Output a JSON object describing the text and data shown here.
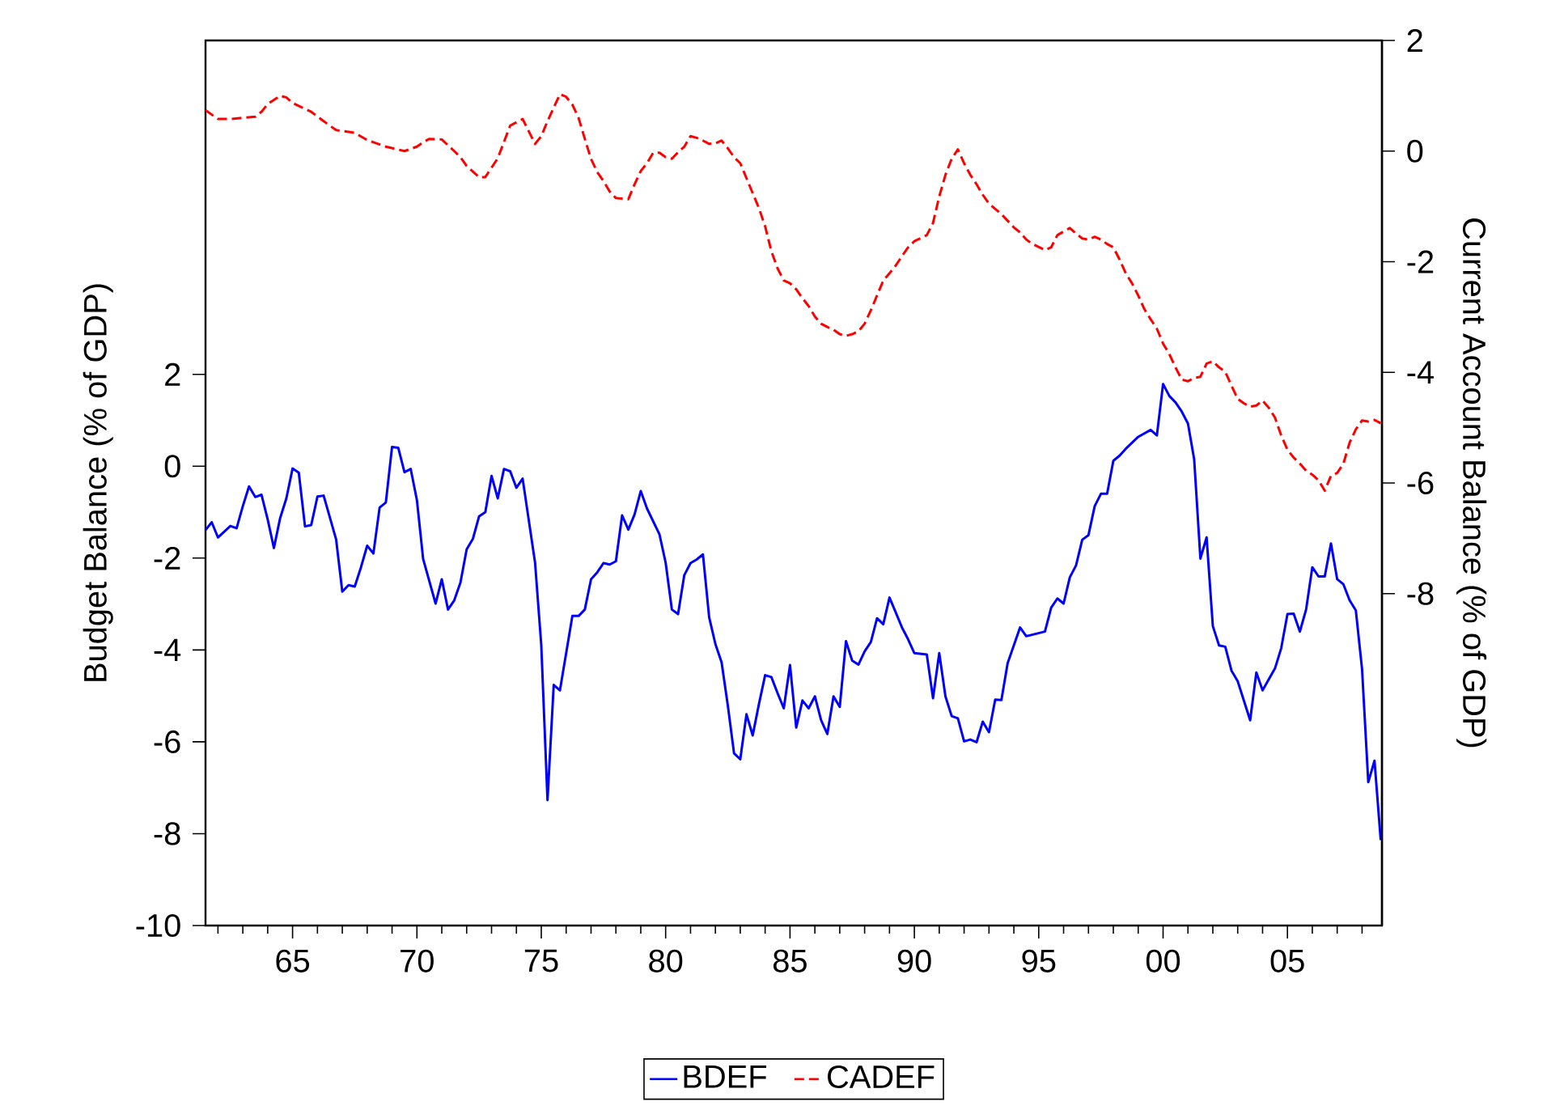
{
  "chart_data": {
    "type": "line",
    "ylabel": "Budget Balance (% of GDP)",
    "y2label": "Current Account Balance (% of GDP)",
    "xlim": [
      1961.5,
      2008.8
    ],
    "ylim": [
      -10,
      9.27
    ],
    "y2lim": [
      -14,
      2
    ],
    "xticks": [
      {
        "value": 1962,
        "label": null
      },
      {
        "value": 1963,
        "label": null
      },
      {
        "value": 1964,
        "label": null
      },
      {
        "value": 1965,
        "label": "65"
      },
      {
        "value": 1966,
        "label": null
      },
      {
        "value": 1967,
        "label": null
      },
      {
        "value": 1968,
        "label": null
      },
      {
        "value": 1969,
        "label": null
      },
      {
        "value": 1970,
        "label": "70"
      },
      {
        "value": 1971,
        "label": null
      },
      {
        "value": 1972,
        "label": null
      },
      {
        "value": 1973,
        "label": null
      },
      {
        "value": 1974,
        "label": null
      },
      {
        "value": 1975,
        "label": "75"
      },
      {
        "value": 1976,
        "label": null
      },
      {
        "value": 1977,
        "label": null
      },
      {
        "value": 1978,
        "label": null
      },
      {
        "value": 1979,
        "label": null
      },
      {
        "value": 1980,
        "label": "80"
      },
      {
        "value": 1981,
        "label": null
      },
      {
        "value": 1982,
        "label": null
      },
      {
        "value": 1983,
        "label": null
      },
      {
        "value": 1984,
        "label": null
      },
      {
        "value": 1985,
        "label": "85"
      },
      {
        "value": 1986,
        "label": null
      },
      {
        "value": 1987,
        "label": null
      },
      {
        "value": 1988,
        "label": null
      },
      {
        "value": 1989,
        "label": null
      },
      {
        "value": 1990,
        "label": "90"
      },
      {
        "value": 1991,
        "label": null
      },
      {
        "value": 1992,
        "label": null
      },
      {
        "value": 1993,
        "label": null
      },
      {
        "value": 1994,
        "label": null
      },
      {
        "value": 1995,
        "label": "95"
      },
      {
        "value": 1996,
        "label": null
      },
      {
        "value": 1997,
        "label": null
      },
      {
        "value": 1998,
        "label": null
      },
      {
        "value": 1999,
        "label": null
      },
      {
        "value": 2000,
        "label": "00"
      },
      {
        "value": 2001,
        "label": null
      },
      {
        "value": 2002,
        "label": null
      },
      {
        "value": 2003,
        "label": null
      },
      {
        "value": 2004,
        "label": null
      },
      {
        "value": 2005,
        "label": "05"
      },
      {
        "value": 2006,
        "label": null
      },
      {
        "value": 2007,
        "label": null
      },
      {
        "value": 2008,
        "label": null
      }
    ],
    "yticks": [
      -10,
      -8,
      -6,
      -4,
      -2,
      0,
      2
    ],
    "y2ticks": [
      -8,
      -6,
      -4,
      -2,
      0,
      2
    ],
    "legend": "bottom",
    "grid": false,
    "marker": "none",
    "series": [
      {
        "name": "BDEF",
        "color": "#0000ff",
        "line_style": "solid",
        "axis": "y",
        "x": [
          1961.5,
          1961.75,
          1962,
          1962.5,
          1962.75,
          1963,
          1963.25,
          1963.5,
          1963.75,
          1964,
          1964.25,
          1964.5,
          1964.75,
          1965,
          1965.25,
          1965.5,
          1965.75,
          1966,
          1966.25,
          1966.75,
          1967,
          1967.25,
          1967.5,
          1967.75,
          1968,
          1968.25,
          1968.5,
          1968.75,
          1969,
          1969.25,
          1969.5,
          1969.75,
          1970,
          1970.25,
          1970.75,
          1971,
          1971.25,
          1971.5,
          1971.75,
          1972,
          1972.25,
          1972.5,
          1972.75,
          1973,
          1973.25,
          1973.5,
          1973.75,
          1974,
          1974.25,
          1974.75,
          1975,
          1975.25,
          1975.5,
          1975.75,
          1976.25,
          1976.5,
          1976.75,
          1977,
          1977.25,
          1977.5,
          1977.75,
          1978,
          1978.25,
          1978.5,
          1978.75,
          1979,
          1979.25,
          1979.5,
          1979.75,
          1980,
          1980.25,
          1980.5,
          1980.75,
          1981,
          1981.25,
          1981.5,
          1981.75,
          1982,
          1982.25,
          1982.5,
          1982.75,
          1983,
          1983.25,
          1983.5,
          1983.75,
          1984,
          1984.25,
          1984.5,
          1984.75,
          1985,
          1985.25,
          1985.5,
          1985.75,
          1986,
          1986.25,
          1986.5,
          1986.75,
          1987,
          1987.25,
          1987.5,
          1987.75,
          1988,
          1988.25,
          1988.5,
          1988.75,
          1989,
          1989.25,
          1989.5,
          1989.75,
          1990,
          1990.5,
          1990.75,
          1991,
          1991.25,
          1991.5,
          1991.75,
          1992,
          1992.25,
          1992.5,
          1992.75,
          1993,
          1993.25,
          1993.5,
          1993.75,
          1994,
          1994.25,
          1994.5,
          1995.25,
          1995.5,
          1995.75,
          1996,
          1996.25,
          1996.5,
          1996.75,
          1997,
          1997.25,
          1997.5,
          1997.75,
          1998,
          1998.25,
          1998.5,
          1999,
          1999.5,
          1999.75,
          2000,
          2000.25,
          2000.5,
          2000.75,
          2001,
          2001.25,
          2001.5,
          2001.75,
          2002,
          2002.25,
          2002.5,
          2002.75,
          2003,
          2003.5,
          2003.75,
          2004,
          2004.5,
          2004.75,
          2005,
          2005.25,
          2005.5,
          2005.75,
          2006,
          2006.25,
          2006.5,
          2006.75,
          2007,
          2007.25,
          2007.5,
          2007.75,
          2008,
          2008.25,
          2008.5,
          2008.75
        ],
        "values": [
          -1.39,
          -1.22,
          -1.55,
          -1.3,
          -1.35,
          -0.87,
          -0.44,
          -0.67,
          -0.62,
          -1.16,
          -1.78,
          -1.13,
          -0.7,
          -0.05,
          -0.14,
          -1.31,
          -1.28,
          -0.66,
          -0.64,
          -1.59,
          -2.73,
          -2.59,
          -2.62,
          -2.2,
          -1.73,
          -1.9,
          -0.9,
          -0.79,
          0.42,
          0.4,
          -0.13,
          -0.06,
          -0.74,
          -2.02,
          -2.99,
          -2.46,
          -3.12,
          -2.92,
          -2.53,
          -1.81,
          -1.58,
          -1.09,
          -1.0,
          -0.21,
          -0.7,
          -0.06,
          -0.11,
          -0.47,
          -0.27,
          -2.1,
          -3.9,
          -7.27,
          -4.76,
          -4.88,
          -3.26,
          -3.26,
          -3.12,
          -2.46,
          -2.31,
          -2.11,
          -2.14,
          -2.07,
          -1.07,
          -1.38,
          -1.05,
          -0.54,
          -0.92,
          -1.2,
          -1.48,
          -2.1,
          -3.12,
          -3.22,
          -2.37,
          -2.11,
          -2.03,
          -1.92,
          -3.29,
          -3.87,
          -4.27,
          -5.21,
          -6.25,
          -6.38,
          -5.4,
          -5.86,
          -5.18,
          -4.55,
          -4.59,
          -4.94,
          -5.27,
          -4.33,
          -5.69,
          -5.1,
          -5.27,
          -5.01,
          -5.53,
          -5.83,
          -5.01,
          -5.24,
          -3.81,
          -4.23,
          -4.32,
          -4.03,
          -3.83,
          -3.31,
          -3.44,
          -2.86,
          -3.18,
          -3.51,
          -3.77,
          -4.07,
          -4.1,
          -5.05,
          -4.07,
          -5.01,
          -5.44,
          -5.49,
          -5.99,
          -5.95,
          -6.01,
          -5.56,
          -5.79,
          -5.08,
          -5.09,
          -4.29,
          -3.9,
          -3.51,
          -3.7,
          -3.6,
          -3.08,
          -2.88,
          -2.99,
          -2.42,
          -2.16,
          -1.6,
          -1.5,
          -0.87,
          -0.6,
          -0.6,
          0.12,
          0.23,
          0.38,
          0.64,
          0.79,
          0.67,
          1.79,
          1.53,
          1.39,
          1.19,
          0.93,
          0.15,
          -2.01,
          -1.55,
          -3.48,
          -3.9,
          -3.93,
          -4.45,
          -4.68,
          -5.53,
          -4.49,
          -4.88,
          -4.4,
          -3.96,
          -3.22,
          -3.21,
          -3.6,
          -3.12,
          -2.2,
          -2.4,
          -2.4,
          -1.68,
          -2.46,
          -2.57,
          -2.92,
          -3.14,
          -4.42,
          -6.88,
          -6.41,
          -8.14
        ]
      },
      {
        "name": "CADEF",
        "color": "#ff0000",
        "line_style": "dashed",
        "axis": "y2",
        "x": [
          1961.5,
          1962,
          1962.5,
          1963,
          1963.5,
          1963.75,
          1964,
          1964.5,
          1964.75,
          1965,
          1965.75,
          1966.25,
          1966.75,
          1967.5,
          1968,
          1968.75,
          1969.5,
          1970,
          1970.25,
          1970.5,
          1971,
          1971.5,
          1971.75,
          1972,
          1972.5,
          1972.75,
          1973.25,
          1973.75,
          1974.25,
          1974.75,
          1975,
          1975.25,
          1975.75,
          1976,
          1976.25,
          1976.5,
          1976.75,
          1977,
          1977.25,
          1977.5,
          1977.75,
          1978,
          1978.5,
          1978.75,
          1979,
          1979.25,
          1979.5,
          1979.75,
          1980,
          1980.25,
          1980.5,
          1980.75,
          1981,
          1981.25,
          1981.5,
          1981.75,
          1982,
          1982.25,
          1982.5,
          1982.75,
          1983,
          1983.25,
          1983.5,
          1983.75,
          1984,
          1984.25,
          1984.5,
          1984.75,
          1985,
          1985.25,
          1985.5,
          1985.75,
          1986,
          1986.25,
          1986.5,
          1986.75,
          1987,
          1987.25,
          1987.5,
          1987.75,
          1988,
          1988.25,
          1988.5,
          1988.75,
          1989,
          1989.25,
          1989.5,
          1989.75,
          1990,
          1990.5,
          1990.75,
          1991,
          1991.25,
          1991.5,
          1991.75,
          1992,
          1992.25,
          1992.5,
          1992.75,
          1993,
          1993.5,
          1994,
          1994.25,
          1994.5,
          1994.75,
          1995.25,
          1995.5,
          1995.75,
          1996.25,
          1996.5,
          1996.75,
          1997,
          1997.25,
          1997.5,
          1997.75,
          1998,
          1998.25,
          1998.5,
          1998.75,
          1999,
          1999.25,
          1999.5,
          1999.75,
          2000,
          2000.25,
          2000.5,
          2000.75,
          2001,
          2001.25,
          2001.5,
          2001.75,
          2002,
          2002.25,
          2002.5,
          2002.75,
          2003,
          2003.25,
          2003.5,
          2003.75,
          2004,
          2004.25,
          2004.5,
          2004.75,
          2005,
          2005.25,
          2005.5,
          2005.75,
          2006,
          2006.25,
          2006.5,
          2006.75,
          2007,
          2007.25,
          2007.5,
          2007.75,
          2008,
          2008.25,
          2008.5,
          2008.75
        ],
        "values": [
          0.74,
          0.58,
          0.58,
          0.6,
          0.62,
          0.71,
          0.85,
          1.0,
          0.97,
          0.87,
          0.71,
          0.54,
          0.38,
          0.33,
          0.2,
          0.08,
          0.0,
          0.08,
          0.16,
          0.22,
          0.21,
          0.0,
          -0.11,
          -0.27,
          -0.47,
          -0.47,
          -0.13,
          0.46,
          0.58,
          0.13,
          0.27,
          0.54,
          1.03,
          0.98,
          0.84,
          0.6,
          0.22,
          -0.14,
          -0.38,
          -0.54,
          -0.73,
          -0.85,
          -0.87,
          -0.6,
          -0.36,
          -0.22,
          -0.03,
          -0.03,
          -0.11,
          -0.14,
          -0.02,
          0.08,
          0.27,
          0.24,
          0.19,
          0.13,
          0.14,
          0.19,
          0.05,
          -0.11,
          -0.22,
          -0.49,
          -0.76,
          -1.03,
          -1.36,
          -1.81,
          -2.12,
          -2.34,
          -2.39,
          -2.5,
          -2.66,
          -2.8,
          -2.99,
          -3.12,
          -3.18,
          -3.23,
          -3.31,
          -3.34,
          -3.31,
          -3.26,
          -3.12,
          -2.88,
          -2.61,
          -2.34,
          -2.21,
          -2.07,
          -1.9,
          -1.74,
          -1.63,
          -1.52,
          -1.3,
          -0.82,
          -0.43,
          -0.14,
          0.03,
          -0.22,
          -0.43,
          -0.6,
          -0.79,
          -0.95,
          -1.14,
          -1.38,
          -1.47,
          -1.6,
          -1.68,
          -1.79,
          -1.74,
          -1.52,
          -1.39,
          -1.49,
          -1.58,
          -1.6,
          -1.55,
          -1.6,
          -1.68,
          -1.74,
          -1.96,
          -2.21,
          -2.39,
          -2.61,
          -2.86,
          -3.04,
          -3.21,
          -3.48,
          -3.67,
          -3.91,
          -4.13,
          -4.16,
          -4.1,
          -4.08,
          -3.84,
          -3.8,
          -3.91,
          -3.99,
          -4.24,
          -4.48,
          -4.56,
          -4.62,
          -4.6,
          -4.51,
          -4.64,
          -4.82,
          -5.14,
          -5.4,
          -5.54,
          -5.65,
          -5.78,
          -5.85,
          -5.95,
          -6.14,
          -5.87,
          -5.82,
          -5.65,
          -5.27,
          -5.03,
          -4.87,
          -4.89,
          -4.86,
          -4.92
        ]
      }
    ]
  }
}
